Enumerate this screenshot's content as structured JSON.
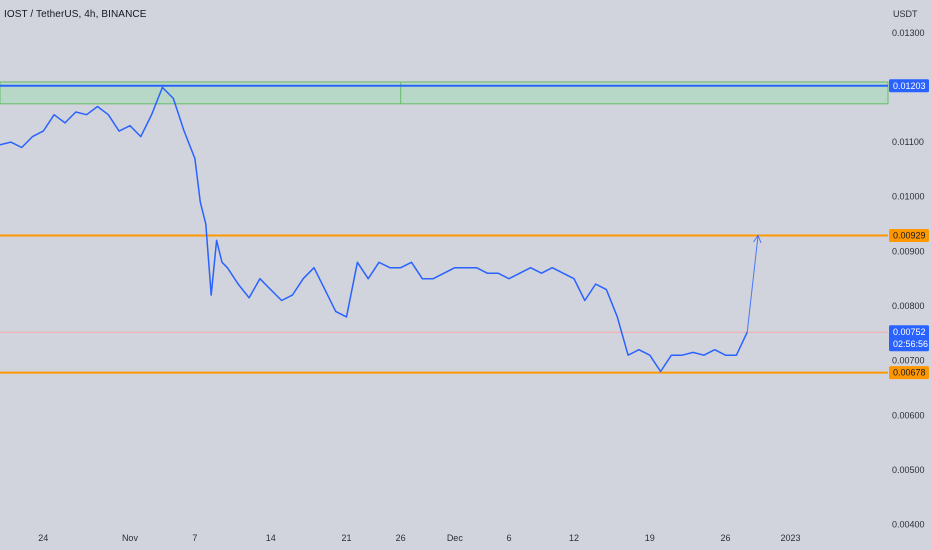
{
  "header": {
    "symbol_title": "IOST / TetherUS, 4h, BINANCE",
    "unit": "USDT"
  },
  "colors": {
    "background": "#d1d4dc",
    "price_line": "#2962ff",
    "resistance_line": "#2962ff",
    "resistance_zone_fill": "#b7d8c6",
    "resistance_zone_border": "#66bb6a",
    "support_line": "#ff9800",
    "last_price_line": "#f7a9a8"
  },
  "chart_data": {
    "type": "line",
    "title": "IOST / TetherUS, 4h, BINANCE",
    "xlabel": "",
    "ylabel": "USDT",
    "ylim": [
      0.0039,
      0.0136
    ],
    "x_tick_labels": [
      "24",
      "Nov",
      "7",
      "14",
      "21",
      "26",
      "Dec",
      "6",
      "12",
      "19",
      "26",
      "2023"
    ],
    "y_tick_labels": [
      "0.01300",
      "0.01100",
      "0.01000",
      "0.00900",
      "0.00800",
      "0.00700",
      "0.00600",
      "0.00500",
      "0.00400"
    ],
    "y_tick_values": [
      0.013,
      0.011,
      0.01,
      0.009,
      0.008,
      0.007,
      0.006,
      0.005,
      0.004
    ],
    "x_axis": {
      "start": "2022-10-20",
      "end": "2023-01-10",
      "ticks": [
        "2022-10-24",
        "2022-11-01",
        "2022-11-07",
        "2022-11-14",
        "2022-11-21",
        "2022-11-26",
        "2022-12-01",
        "2022-12-06",
        "2022-12-12",
        "2022-12-19",
        "2022-12-26",
        "2023-01-01"
      ]
    },
    "series": [
      {
        "name": "",
        "x": [
          "2022-10-20",
          "2022-10-21",
          "2022-10-22",
          "2022-10-23",
          "2022-10-24",
          "2022-10-25",
          "2022-10-26",
          "2022-10-27",
          "2022-10-28",
          "2022-10-29",
          "2022-10-30",
          "2022-10-31",
          "2022-11-01",
          "2022-11-02",
          "2022-11-03",
          "2022-11-04",
          "2022-11-05",
          "2022-11-06",
          "2022-11-07",
          "2022-11-07 12:00",
          "2022-11-08",
          "2022-11-08 12:00",
          "2022-11-09",
          "2022-11-09 12:00",
          "2022-11-10",
          "2022-11-11",
          "2022-11-12",
          "2022-11-13",
          "2022-11-14",
          "2022-11-15",
          "2022-11-16",
          "2022-11-17",
          "2022-11-18",
          "2022-11-19",
          "2022-11-20",
          "2022-11-21",
          "2022-11-22",
          "2022-11-23",
          "2022-11-24",
          "2022-11-25",
          "2022-11-26",
          "2022-11-27",
          "2022-11-28",
          "2022-11-29",
          "2022-11-30",
          "2022-12-01",
          "2022-12-02",
          "2022-12-03",
          "2022-12-04",
          "2022-12-05",
          "2022-12-06",
          "2022-12-07",
          "2022-12-08",
          "2022-12-09",
          "2022-12-10",
          "2022-12-11",
          "2022-12-12",
          "2022-12-13",
          "2022-12-14",
          "2022-12-15",
          "2022-12-16",
          "2022-12-17",
          "2022-12-18",
          "2022-12-19",
          "2022-12-20",
          "2022-12-21",
          "2022-12-22",
          "2022-12-23",
          "2022-12-24",
          "2022-12-25",
          "2022-12-26",
          "2022-12-27",
          "2022-12-28"
        ],
        "values": [
          0.01095,
          0.011,
          0.0109,
          0.0111,
          0.0112,
          0.0115,
          0.01135,
          0.01155,
          0.0115,
          0.01165,
          0.0115,
          0.0112,
          0.0113,
          0.0111,
          0.0115,
          0.012,
          0.0118,
          0.0112,
          0.0107,
          0.0099,
          0.0095,
          0.0082,
          0.0092,
          0.0088,
          0.0087,
          0.0084,
          0.00815,
          0.0085,
          0.0083,
          0.0081,
          0.0082,
          0.0085,
          0.0087,
          0.0083,
          0.0079,
          0.0078,
          0.0088,
          0.0085,
          0.0088,
          0.0087,
          0.0087,
          0.0088,
          0.0085,
          0.0085,
          0.0086,
          0.0087,
          0.0087,
          0.0087,
          0.0086,
          0.0086,
          0.0085,
          0.0086,
          0.0087,
          0.0086,
          0.0087,
          0.0086,
          0.0085,
          0.0081,
          0.0084,
          0.0083,
          0.0078,
          0.0071,
          0.0072,
          0.0071,
          0.0068,
          0.0071,
          0.0071,
          0.00715,
          0.0071,
          0.0072,
          0.0071,
          0.0071,
          0.00752
        ]
      }
    ],
    "projection_arrow": {
      "from_x": "2022-12-28",
      "from_y": 0.00752,
      "to_x": "2022-12-29",
      "to_y": 0.00929
    },
    "levels": [
      {
        "name": "resistance",
        "value": 0.01203,
        "label": "0.01203"
      },
      {
        "name": "support-upper",
        "value": 0.00929,
        "label": "0.00929"
      },
      {
        "name": "support-lower",
        "value": 0.00678,
        "label": "0.00678"
      }
    ],
    "resistance_zone": {
      "start": "2022-10-20",
      "end": "2023-01-10",
      "low": 0.0117,
      "high": 0.0121
    },
    "zone_divider_x": "2022-11-26",
    "last_price": {
      "value": 0.00752,
      "label": "0.00752",
      "countdown": "02:56:56"
    },
    "grid": false,
    "legend": "none"
  }
}
